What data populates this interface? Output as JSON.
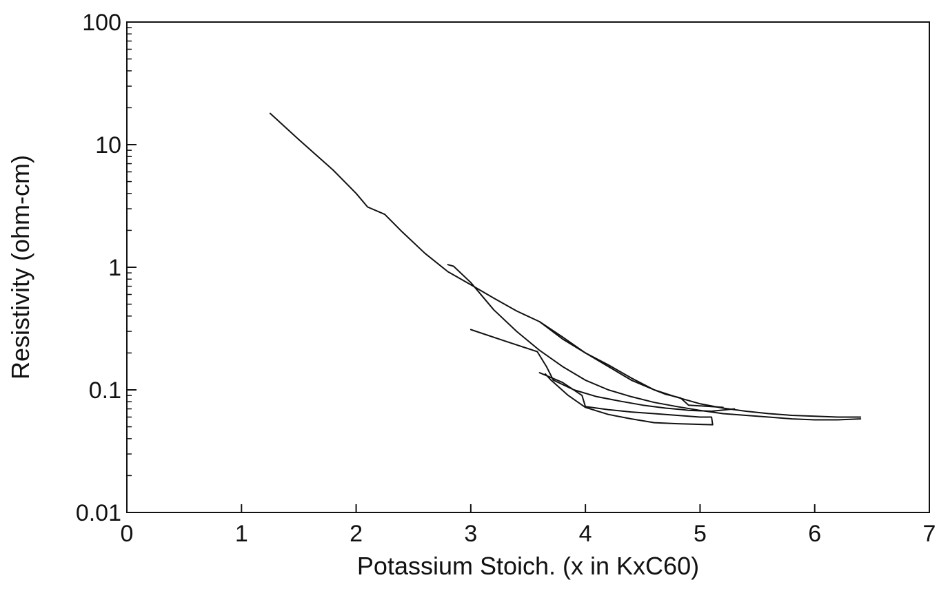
{
  "chart_data": {
    "type": "line",
    "title": "",
    "xlabel": "Potassium Stoich. (x in KxC60)",
    "ylabel": "Resistivity (ohm-cm)",
    "xlim": [
      0,
      7
    ],
    "ylim": [
      0.01,
      100
    ],
    "yscale": "log",
    "grid": false,
    "x_ticks": [
      0,
      1,
      2,
      3,
      4,
      5,
      6,
      7
    ],
    "x_tick_labels": [
      "0",
      "1",
      "2",
      "3",
      "4",
      "5",
      "6",
      "7"
    ],
    "y_ticks": [
      0.01,
      0.1,
      1,
      10,
      100
    ],
    "y_tick_labels": [
      "0.01",
      "0.1",
      "1",
      "10",
      "100"
    ],
    "series": [
      {
        "x": [
          1.25,
          1.5,
          1.8,
          2.0,
          2.1,
          2.25,
          2.4,
          2.6,
          2.8,
          3.0,
          3.2,
          3.4,
          3.6,
          3.8,
          4.0,
          4.2,
          4.4,
          4.6,
          4.8,
          5.0,
          5.2,
          5.4,
          5.6,
          5.8,
          6.0,
          6.2,
          6.4
        ],
        "y": [
          18,
          11,
          6.2,
          4.0,
          3.1,
          2.7,
          1.95,
          1.3,
          0.92,
          0.72,
          0.56,
          0.44,
          0.36,
          0.26,
          0.2,
          0.16,
          0.125,
          0.1,
          0.087,
          0.077,
          0.071,
          0.067,
          0.064,
          0.062,
          0.061,
          0.06,
          0.06
        ]
      },
      {
        "x": [
          2.8,
          2.85,
          3.0,
          3.2,
          3.4,
          3.6,
          3.8,
          4.0,
          4.2,
          4.4,
          4.6,
          4.8,
          5.0,
          5.2,
          5.4,
          5.6,
          5.8,
          6.0,
          6.2,
          6.4
        ],
        "y": [
          1.05,
          1.02,
          0.75,
          0.45,
          0.3,
          0.21,
          0.155,
          0.12,
          0.1,
          0.088,
          0.079,
          0.073,
          0.068,
          0.064,
          0.062,
          0.06,
          0.058,
          0.057,
          0.057,
          0.058
        ]
      },
      {
        "x": [
          3.0,
          3.3,
          3.58,
          3.66,
          3.72,
          3.9,
          4.1,
          4.3,
          4.5,
          4.7,
          4.85,
          4.9,
          5.1,
          5.3
        ],
        "y": [
          0.31,
          0.25,
          0.205,
          0.155,
          0.12,
          0.1,
          0.088,
          0.081,
          0.075,
          0.071,
          0.069,
          0.068,
          0.067,
          0.07
        ]
      },
      {
        "x": [
          3.6,
          3.8,
          3.97,
          4.0,
          4.2,
          4.4,
          4.6,
          4.8,
          5.0,
          5.1,
          5.11,
          4.8,
          4.6,
          4.4,
          4.2,
          4.0,
          3.85,
          3.7,
          3.65
        ],
        "y": [
          0.138,
          0.115,
          0.09,
          0.073,
          0.069,
          0.066,
          0.064,
          0.062,
          0.06,
          0.06,
          0.052,
          0.053,
          0.054,
          0.058,
          0.063,
          0.072,
          0.09,
          0.12,
          0.135
        ]
      },
      {
        "x": [
          3.6,
          3.8,
          4.0,
          4.2,
          4.4,
          4.6,
          4.7,
          4.83,
          4.9,
          5.2
        ],
        "y": [
          0.36,
          0.27,
          0.2,
          0.155,
          0.12,
          0.1,
          0.092,
          0.086,
          0.075,
          0.072
        ]
      }
    ]
  }
}
